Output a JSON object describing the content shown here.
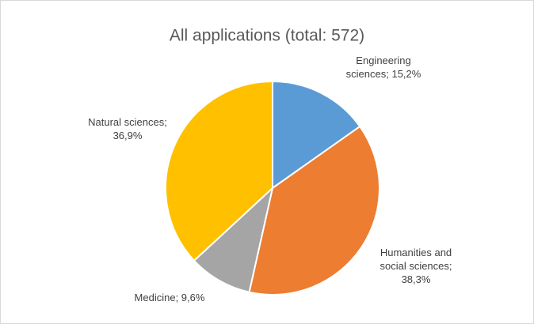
{
  "chart_data": {
    "type": "pie",
    "title": "All applications (total: 572)",
    "values": [
      15.2,
      38.3,
      9.6,
      36.9
    ],
    "value_labels": [
      "Engineering sciences; 15,2%",
      "Humanities and social sciences; 38,3%",
      "Medicine; 9,6%",
      "Natural sciences; 36,9%"
    ],
    "colors": [
      "#5b9bd5",
      "#ed7d31",
      "#a5a5a5",
      "#ffc000"
    ]
  }
}
